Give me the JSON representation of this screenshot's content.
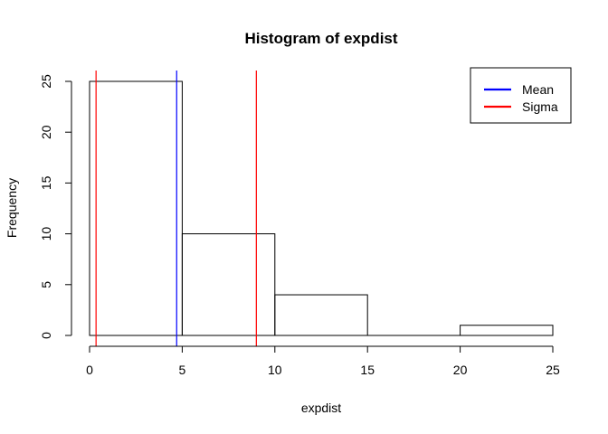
{
  "chart_data": {
    "type": "bar",
    "title": "Histogram of expdist",
    "xlabel": "expdist",
    "ylabel": "Frequency",
    "bins": [
      {
        "from": 0,
        "to": 5,
        "count": 25
      },
      {
        "from": 5,
        "to": 10,
        "count": 10
      },
      {
        "from": 10,
        "to": 15,
        "count": 4
      },
      {
        "from": 15,
        "to": 20,
        "count": 0
      },
      {
        "from": 20,
        "to": 25,
        "count": 1
      }
    ],
    "xlim": [
      0,
      25
    ],
    "ylim": [
      0,
      25
    ],
    "x_ticks": [
      "0",
      "5",
      "10",
      "15",
      "20",
      "25"
    ],
    "y_ticks": [
      "0",
      "5",
      "10",
      "15",
      "20",
      "25"
    ],
    "grid": false,
    "lines": [
      {
        "name": "Mean",
        "x": 4.7,
        "color": "#0000ff"
      },
      {
        "name": "Sigma",
        "x": 0.35,
        "color": "#ff0000"
      },
      {
        "name": "Sigma",
        "x": 9.0,
        "color": "#ff0000"
      }
    ],
    "legend": {
      "position": "top-right",
      "items": [
        {
          "label": "Mean",
          "color": "#0000ff"
        },
        {
          "label": "Sigma",
          "color": "#ff0000"
        }
      ]
    }
  }
}
